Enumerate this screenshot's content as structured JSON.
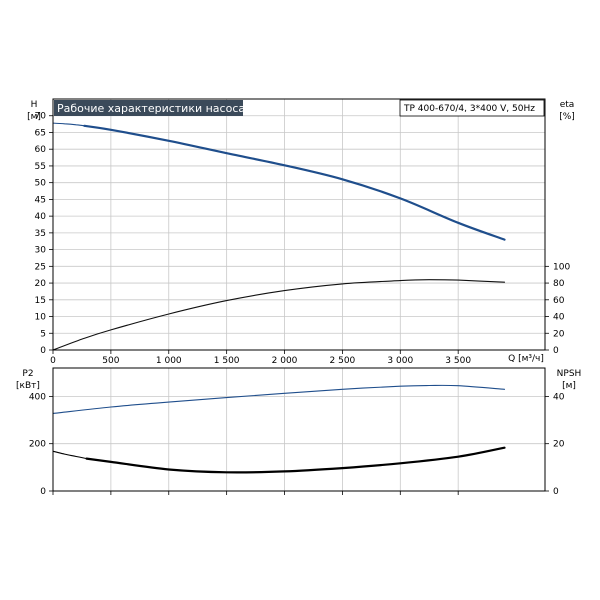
{
  "chart_data": [
    {
      "type": "line",
      "title": "Рабочие характеристики насоса",
      "subtitle": "TP 400-670/4, 3*400 V, 50Hz",
      "xlabel": "Q [м³/ч]",
      "xlim": [
        0,
        4250
      ],
      "x_ticks": [
        "0",
        "500",
        "1 000",
        "1 500",
        "2 000",
        "2 500",
        "3 000",
        "3 500"
      ],
      "y_left": {
        "label": "H",
        "unit": "[м]",
        "ylim": [
          0,
          75
        ],
        "ticks": [
          "0",
          "5",
          "10",
          "15",
          "20",
          "25",
          "30",
          "35",
          "40",
          "45",
          "50",
          "55",
          "60",
          "65",
          "70"
        ]
      },
      "y_right": {
        "label": "eta",
        "unit": "[%]",
        "ylim": [
          0,
          300
        ],
        "ticks": [
          "0",
          "20",
          "40",
          "60",
          "80",
          "100"
        ]
      },
      "grid": true,
      "series": [
        {
          "color": "#1f4e8c",
          "axis": "left",
          "segments": [
            {
              "style": "thin",
              "x": [
                0,
                100,
                200,
                270
              ],
              "y": [
                67.8,
                67.6,
                67.3,
                67.0
              ]
            },
            {
              "style": "thick",
              "x": [
                270,
                500,
                1000,
                1500,
                2000,
                2500,
                3000,
                3500,
                3900
              ],
              "y": [
                67.0,
                65.8,
                62.5,
                58.8,
                55.2,
                51.0,
                45.3,
                38.0,
                33.0
              ]
            }
          ]
        },
        {
          "color": "#111111",
          "axis": "right",
          "segments": [
            {
              "style": "thin",
              "x": [
                0,
                250,
                500,
                1000,
                1500,
                2000,
                2500,
                3000,
                3250,
                3500,
                3900
              ],
              "y": [
                0,
                13,
                24,
                43,
                59,
                71,
                79,
                83,
                84,
                83.5,
                81
              ]
            }
          ]
        }
      ]
    },
    {
      "type": "line",
      "xlim": [
        0,
        4250
      ],
      "y_left": {
        "label": "P2",
        "unit": "[кВт]",
        "ylim": [
          0,
          520
        ],
        "ticks": [
          "0",
          "200",
          "400"
        ]
      },
      "y_right": {
        "label": "NPSH",
        "unit": "[м]",
        "ylim": [
          0,
          52
        ],
        "ticks": [
          "0",
          "20",
          "40"
        ]
      },
      "grid": true,
      "series": [
        {
          "color": "#1f4e8c",
          "axis": "left",
          "segments": [
            {
              "style": "thin",
              "x": [
                0,
                500,
                1000,
                1500,
                2000,
                2500,
                3000,
                3250,
                3500,
                3900
              ],
              "y": [
                328,
                355,
                376,
                395,
                413,
                430,
                443,
                446,
                445,
                430
              ]
            }
          ]
        },
        {
          "color": "#000000",
          "axis": "right",
          "segments": [
            {
              "style": "thin",
              "x": [
                0,
                100,
                200,
                290
              ],
              "y": [
                16.8,
                15.6,
                14.6,
                13.7
              ]
            },
            {
              "style": "thick",
              "x": [
                290,
                500,
                1000,
                1500,
                2000,
                2500,
                3000,
                3500,
                3900
              ],
              "y": [
                13.7,
                12.3,
                9.1,
                7.9,
                8.3,
                9.7,
                11.7,
                14.5,
                18.3
              ]
            }
          ]
        }
      ]
    }
  ]
}
